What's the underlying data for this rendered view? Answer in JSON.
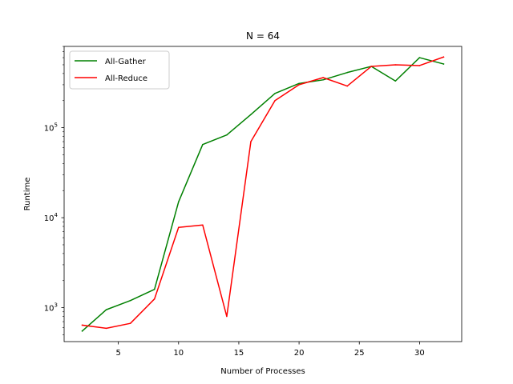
{
  "chart_data": {
    "type": "line",
    "title": "N = 64",
    "xlabel": "Number of Processes",
    "ylabel": "Runtime",
    "yscale": "log",
    "xlim": [
      0.5,
      33.5
    ],
    "ylim": [
      420,
      800000
    ],
    "x_ticks": [
      5,
      10,
      15,
      20,
      25,
      30
    ],
    "x_tick_labels": [
      "5",
      "10",
      "15",
      "20",
      "25",
      "30"
    ],
    "y_ticks": [
      1000,
      10000,
      100000
    ],
    "y_tick_labels": [
      {
        "base": "10",
        "exp": "3"
      },
      {
        "base": "10",
        "exp": "4"
      },
      {
        "base": "10",
        "exp": "5"
      }
    ],
    "grid": false,
    "legend_position": "top-left",
    "x": [
      2,
      4,
      6,
      8,
      10,
      12,
      14,
      16,
      18,
      20,
      22,
      24,
      26,
      28,
      30,
      32
    ],
    "series": [
      {
        "name": "All-Gather",
        "color": "#008000",
        "values": [
          550,
          950,
          1200,
          1600,
          15000,
          65000,
          83000,
          140000,
          240000,
          310000,
          340000,
          410000,
          480000,
          330000,
          600000,
          510000
        ]
      },
      {
        "name": "All-Reduce",
        "color": "#ff0000",
        "values": [
          640,
          590,
          670,
          1250,
          7800,
          8300,
          800,
          70000,
          200000,
          300000,
          360000,
          290000,
          480000,
          500000,
          490000,
          610000
        ]
      }
    ]
  }
}
